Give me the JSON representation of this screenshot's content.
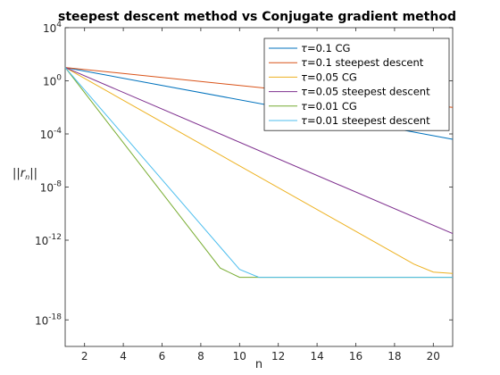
{
  "chart_data": {
    "type": "line",
    "title": "steepest descent method vs Conjugate gradient method",
    "xlabel": "n",
    "ylabel": "||r_n||",
    "xlim": [
      1,
      21
    ],
    "ylim_log10": [
      -20,
      4
    ],
    "y_scale": "log",
    "grid": false,
    "legend_position": "top-right",
    "x_ticks": [
      2,
      4,
      6,
      8,
      10,
      12,
      14,
      16,
      18,
      20
    ],
    "x_tick_labels": [
      "2",
      "4",
      "6",
      "8",
      "10",
      "12",
      "14",
      "16",
      "18",
      "20"
    ],
    "y_ticks": [
      {
        "base": "10",
        "exp": "4",
        "log": 4
      },
      {
        "base": "10",
        "exp": "0",
        "log": 0
      },
      {
        "base": "10",
        "exp": "-4",
        "log": -4
      },
      {
        "base": "10",
        "exp": "-8",
        "log": -8
      },
      {
        "base": "10",
        "exp": "-12",
        "log": -12
      },
      {
        "base": "10",
        "exp": "-18",
        "log": -18
      }
    ],
    "series": [
      {
        "tau": "=0.1 CG",
        "method": "CG",
        "color": "#0072BD",
        "x": [
          1,
          21
        ],
        "log10_y": [
          1.0,
          -4.4
        ]
      },
      {
        "tau": "=0.1 steepest descent",
        "method": "steepest descent",
        "color": "#D95319",
        "x": [
          1,
          21
        ],
        "log10_y": [
          1.0,
          -2.0
        ]
      },
      {
        "tau": "=0.05 CG",
        "method": "CG",
        "color": "#EDB120",
        "x": [
          1,
          19,
          20,
          21
        ],
        "log10_y": [
          1.0,
          -13.8,
          -14.4,
          -14.5
        ]
      },
      {
        "tau": "=0.05 steepest descent",
        "method": "steepest descent",
        "color": "#7E2F8E",
        "x": [
          1,
          21
        ],
        "log10_y": [
          1.0,
          -11.5
        ]
      },
      {
        "tau": "=0.01 CG",
        "method": "CG",
        "color": "#77AC30",
        "x": [
          1,
          9,
          10,
          11,
          21
        ],
        "log10_y": [
          1.0,
          -14.1,
          -14.8,
          -14.8,
          -14.8
        ]
      },
      {
        "tau": "=0.01 steepest descent",
        "method": "steepest descent",
        "color": "#4DBEEE",
        "x": [
          1,
          10,
          11,
          21
        ],
        "log10_y": [
          1.0,
          -14.2,
          -14.8,
          -14.8
        ]
      }
    ]
  }
}
